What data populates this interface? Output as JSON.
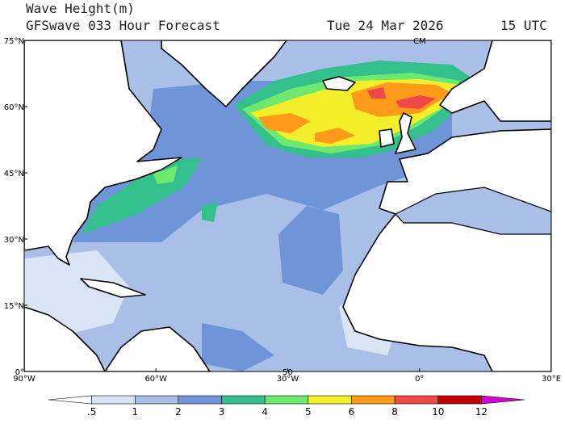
{
  "header": {
    "title": "Wave Height(m)",
    "subtitle": "GFSwave 033 Hour Forecast",
    "date": "Tue 24 Mar 2026",
    "time": "15 UTC"
  },
  "axes": {
    "lat_labels": [
      "75°N",
      "60°N",
      "45°N",
      "30°N",
      "15°N",
      "0°"
    ],
    "lon_labels": [
      "90°W",
      "60°W",
      "30°W",
      "0°",
      "30°E"
    ]
  },
  "annotations": [
    "CM",
    "50"
  ],
  "colorbar": {
    "levels": [
      {
        "value": 0.5,
        "label": ".5"
      },
      1,
      2,
      3,
      4,
      5,
      6,
      8,
      10,
      12
    ],
    "colors": [
      "#ffffff",
      "#d9e5f5",
      "#a9bfe8",
      "#6f95d8",
      "#33c08c",
      "#6fe870",
      "#f5ee2a",
      "#ff9a1a",
      "#f04848",
      "#c40000",
      "#d400d4"
    ]
  }
}
